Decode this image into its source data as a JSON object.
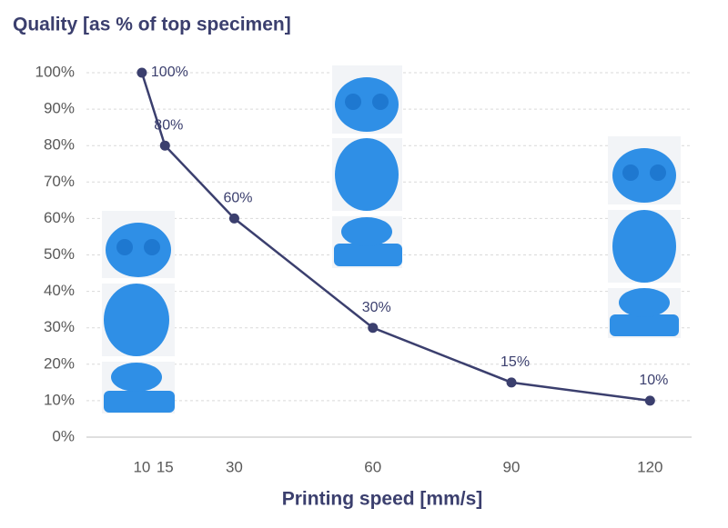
{
  "chart_data": {
    "type": "line",
    "title": "Quality [as % of top specimen]",
    "xlabel": "Printing speed [mm/s]",
    "x": [
      10,
      15,
      30,
      60,
      90,
      120
    ],
    "values": [
      100,
      80,
      60,
      30,
      15,
      10
    ],
    "value_labels": [
      "100%",
      "80%",
      "60%",
      "30%",
      "15%",
      "10%"
    ],
    "color": "#3b3f6e",
    "xlim": [
      -2,
      129
    ],
    "xticks": [
      10,
      15,
      30,
      60,
      90,
      120
    ],
    "ylim": [
      0,
      100
    ],
    "yticks": [
      {
        "value": 0,
        "label": "0%"
      },
      {
        "value": 10,
        "label": "10%"
      },
      {
        "value": 20,
        "label": "20%"
      },
      {
        "value": 30,
        "label": "30%"
      },
      {
        "value": 40,
        "label": "40%"
      },
      {
        "value": 50,
        "label": "50%"
      },
      {
        "value": 60,
        "label": "60%"
      },
      {
        "value": 70,
        "label": "70%"
      },
      {
        "value": 80,
        "label": "80%"
      },
      {
        "value": 90,
        "label": "90%"
      },
      {
        "value": 100,
        "label": "100%"
      }
    ],
    "grid": true
  }
}
